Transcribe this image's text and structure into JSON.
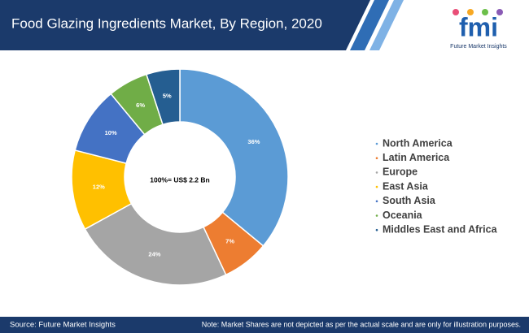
{
  "header": {
    "title": "Food Glazing Ingredients Market, By Region, 2020"
  },
  "logo": {
    "mark": "fmi",
    "name": "Future Market Insights"
  },
  "chart_data": {
    "type": "pie",
    "center_label": "100%= US$ 2.2 Bn",
    "categories": [
      "North America",
      "Latin America",
      "Europe",
      "East Asia",
      "South Asia",
      "Oceania",
      "Middles East and Africa"
    ],
    "values": [
      36,
      7,
      24,
      12,
      10,
      6,
      5
    ],
    "value_labels": [
      "36%",
      "7%",
      "24%",
      "12%",
      "10%",
      "6%",
      "5%"
    ],
    "colors": [
      "#5b9bd5",
      "#ed7d31",
      "#a5a5a5",
      "#ffc000",
      "#4472c4",
      "#70ad47",
      "#255e91"
    ],
    "legend": "right"
  },
  "footer": {
    "source": "Source: Future Market Insights",
    "note": "Note: Market Shares are not depicted as per the actual scale and are only for illustration purposes."
  }
}
